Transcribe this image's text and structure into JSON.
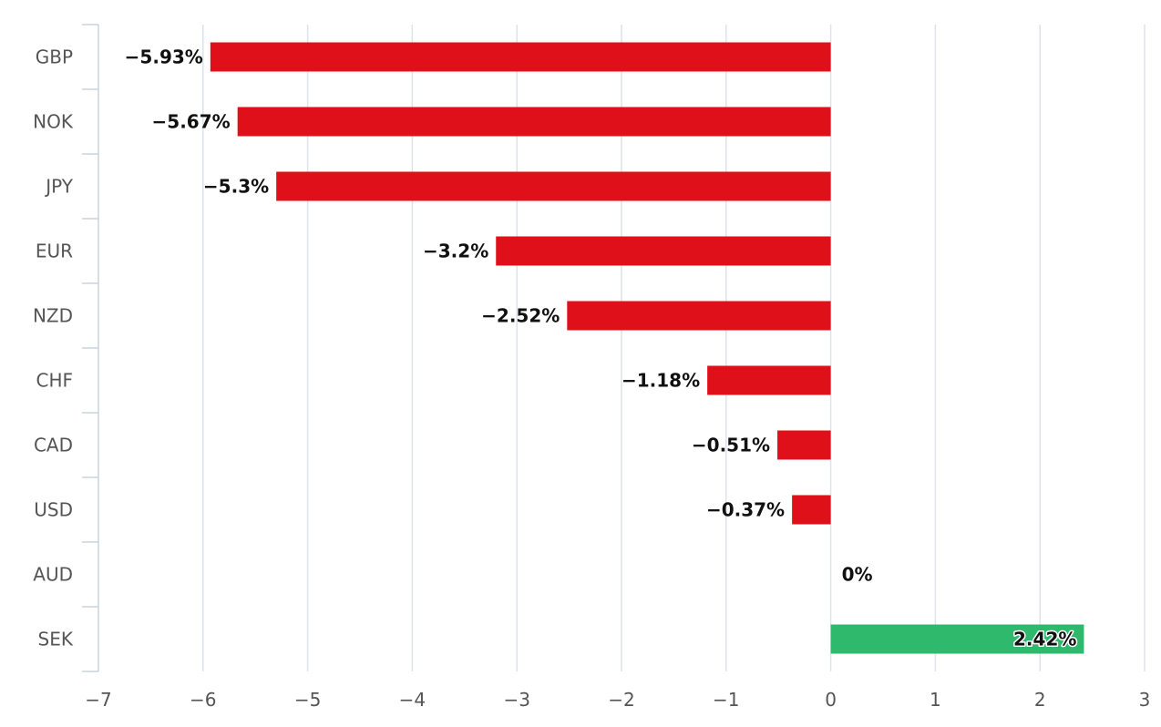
{
  "chart_data": {
    "type": "bar",
    "orientation": "horizontal",
    "title": "",
    "xlabel": "",
    "ylabel": "",
    "categories": [
      "GBP",
      "NOK",
      "JPY",
      "EUR",
      "NZD",
      "CHF",
      "CAD",
      "USD",
      "AUD",
      "SEK"
    ],
    "values": [
      -5.93,
      -5.67,
      -5.3,
      -3.2,
      -2.52,
      -1.18,
      -0.51,
      -0.37,
      0,
      2.42
    ],
    "data_labels": [
      "−5.93%",
      "−5.67%",
      "−5.3%",
      "−3.2%",
      "−2.52%",
      "−1.18%",
      "−0.51%",
      "−0.37%",
      "0%",
      "2.42%"
    ],
    "xlim": [
      -7,
      3
    ],
    "xticks": [
      -7,
      -6,
      -5,
      -4,
      -3,
      -2,
      -1,
      0,
      1,
      2,
      3
    ],
    "xtick_labels": [
      "−7",
      "−6",
      "−5",
      "−4",
      "−3",
      "−2",
      "−1",
      "0",
      "1",
      "2",
      "3"
    ],
    "grid": true,
    "legend": "none",
    "colors": {
      "negative": "#e0101a",
      "positive": "#2fb96c",
      "grid": "#dde3ea",
      "axis": "#c9d3de",
      "label_text": "#555555",
      "data_label_text": "#111111"
    }
  }
}
